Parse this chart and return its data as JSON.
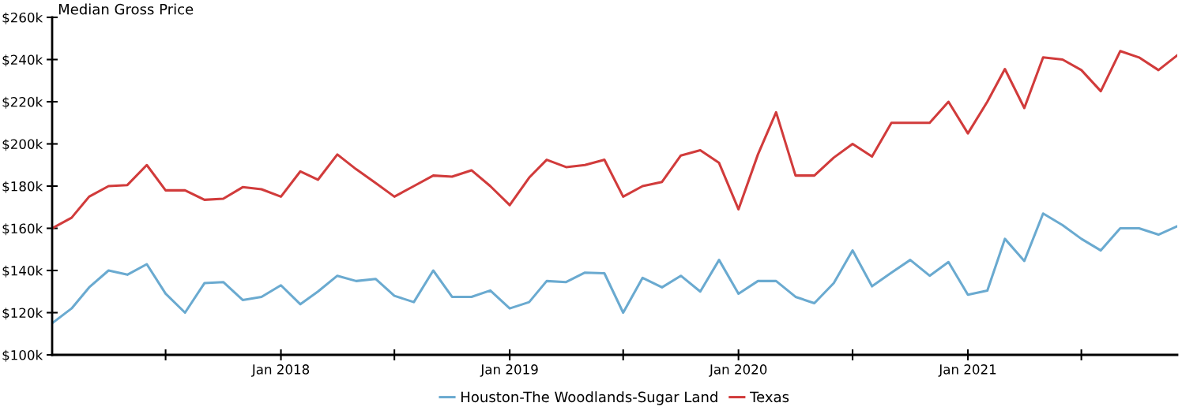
{
  "chart_data": {
    "type": "line",
    "title": "Median Gross Price",
    "x": [
      "2017-01",
      "2017-02",
      "2017-03",
      "2017-04",
      "2017-05",
      "2017-06",
      "2017-07",
      "2017-08",
      "2017-09",
      "2017-10",
      "2017-11",
      "2017-12",
      "2018-01",
      "2018-02",
      "2018-03",
      "2018-04",
      "2018-05",
      "2018-06",
      "2018-07",
      "2018-08",
      "2018-09",
      "2018-10",
      "2018-11",
      "2018-12",
      "2019-01",
      "2019-02",
      "2019-03",
      "2019-04",
      "2019-05",
      "2019-06",
      "2019-07",
      "2019-08",
      "2019-09",
      "2019-10",
      "2019-11",
      "2019-12",
      "2020-01",
      "2020-02",
      "2020-03",
      "2020-04",
      "2020-05",
      "2020-06",
      "2020-07",
      "2020-08",
      "2020-09",
      "2020-10",
      "2020-11",
      "2020-12",
      "2021-01",
      "2021-02",
      "2021-03",
      "2021-04",
      "2021-05",
      "2021-06",
      "2021-07",
      "2021-08",
      "2021-09",
      "2021-10",
      "2021-11",
      "2021-12"
    ],
    "series": [
      {
        "name": "Houston-The Woodlands-Sugar Land",
        "color": "#6aaad0",
        "values": [
          115000,
          122000,
          132000,
          140000,
          138000,
          143000,
          129000,
          120000,
          134000,
          134500,
          126000,
          127500,
          133000,
          124000,
          130000,
          137500,
          135000,
          136000,
          128000,
          125000,
          140000,
          127500,
          127500,
          130500,
          122000,
          125000,
          135000,
          134500,
          139000,
          138700,
          120000,
          136500,
          132000,
          137500,
          130000,
          145000,
          129000,
          135000,
          135000,
          127500,
          124500,
          134000,
          149500,
          132500,
          139000,
          145000,
          137500,
          144000,
          128500,
          130500,
          155000,
          144500,
          167000,
          161500,
          155000,
          149500,
          160000,
          160000,
          157000,
          161000
        ]
      },
      {
        "name": "Texas",
        "color": "#d13b3b",
        "values": [
          160000,
          165000,
          175000,
          180000,
          180500,
          190000,
          178000,
          178000,
          173500,
          174000,
          179500,
          178500,
          175000,
          187000,
          183000,
          195000,
          188000,
          181500,
          175000,
          180000,
          185000,
          184500,
          187500,
          180000,
          171000,
          184000,
          192500,
          189000,
          190000,
          192500,
          175000,
          180000,
          182000,
          194500,
          197000,
          191000,
          169000,
          195000,
          215000,
          185000,
          185000,
          193500,
          200000,
          194000,
          210000,
          210000,
          210000,
          220000,
          205000,
          220000,
          235500,
          217000,
          241000,
          240000,
          235000,
          225000,
          244000,
          241000,
          235000,
          242000
        ]
      }
    ],
    "xlim": [
      "2017-01",
      "2021-12"
    ],
    "xticks": [
      {
        "value": "2017-07",
        "label": null
      },
      {
        "value": "2018-01",
        "label": "Jan 2018"
      },
      {
        "value": "2018-07",
        "label": null
      },
      {
        "value": "2019-01",
        "label": "Jan 2019"
      },
      {
        "value": "2019-07",
        "label": null
      },
      {
        "value": "2020-01",
        "label": "Jan 2020"
      },
      {
        "value": "2020-07",
        "label": null
      },
      {
        "value": "2021-01",
        "label": "Jan 2021"
      },
      {
        "value": "2021-07",
        "label": null
      }
    ],
    "ylim": [
      100000,
      260000
    ],
    "yticks": [
      {
        "value": 100000,
        "label": "$100k"
      },
      {
        "value": 120000,
        "label": "$120k"
      },
      {
        "value": 140000,
        "label": "$140k"
      },
      {
        "value": 160000,
        "label": "$160k"
      },
      {
        "value": 180000,
        "label": "$180k"
      },
      {
        "value": 200000,
        "label": "$200k"
      },
      {
        "value": 220000,
        "label": "$220k"
      },
      {
        "value": 240000,
        "label": "$240k"
      },
      {
        "value": 260000,
        "label": "$260k"
      }
    ],
    "legend": "bottom",
    "marker": "none",
    "line_style": "solid"
  }
}
